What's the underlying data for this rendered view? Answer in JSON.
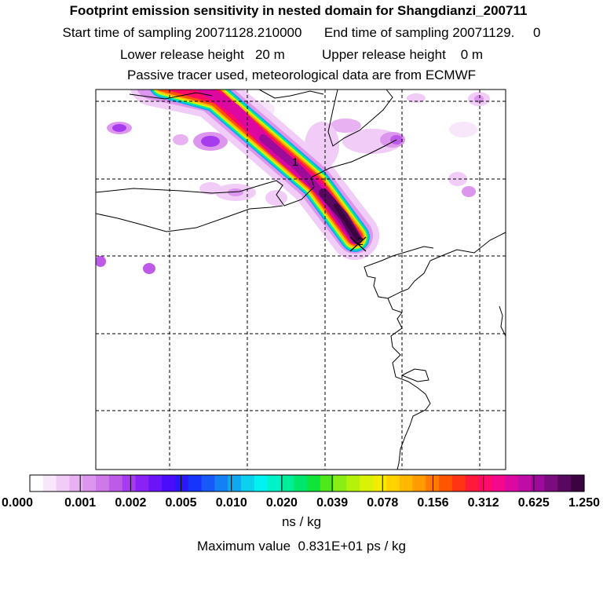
{
  "header": {
    "title": "Footprint emission sensitivity in nested domain for Shangdianzi_200711",
    "start_label": "Start time of sampling",
    "start_value": "20071128.210000",
    "end_label": "End time of sampling",
    "end_value": "20071129.",
    "end_suffix": "0",
    "lower_label": "Lower release height",
    "lower_value": "20 m",
    "upper_label": "Upper release height",
    "upper_value": "0 m",
    "tracer_note": "Passive tracer used, meteorological data are from ECMWF"
  },
  "map": {
    "marker_labels": [
      "1",
      "2"
    ],
    "palette": [
      "#ffffff",
      "#f8e6fb",
      "#f0ccf6",
      "#e8b2f2",
      "#dd96ee",
      "#cf78ea",
      "#bd5ae8",
      "#a63cee",
      "#8a22f4",
      "#6a14f8",
      "#4a0cfa",
      "#2a18fb",
      "#1634fb",
      "#1658f8",
      "#1380f4",
      "#10a8ef",
      "#0cd0ee",
      "#02f2f2",
      "#00f2c8",
      "#00ee9c",
      "#00e66c",
      "#10e43a",
      "#50e81c",
      "#8aee14",
      "#b4f20c",
      "#daf206",
      "#f4ec00",
      "#ffd200",
      "#ffb800",
      "#ff9a00",
      "#ff7800",
      "#ff5400",
      "#ff3414",
      "#ff1a3c",
      "#ff0c68",
      "#f4088c",
      "#dc08a0",
      "#be0ca4",
      "#9c0c98",
      "#7a0c80",
      "#58085e",
      "#3a0440"
    ]
  },
  "colorbar": {
    "ticks": [
      "0.000",
      "0.001",
      "0.002",
      "0.005",
      "0.010",
      "0.020",
      "0.039",
      "0.078",
      "0.156",
      "0.312",
      "0.625",
      "1.250"
    ],
    "units": "ns / kg",
    "max_label": "Maximum value",
    "max_value": "0.831E+01 ps / kg"
  }
}
